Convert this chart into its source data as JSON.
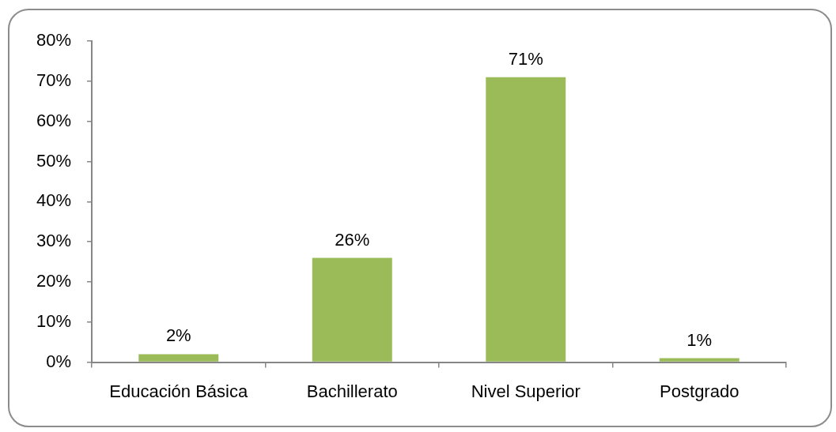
{
  "chart_data": {
    "type": "bar",
    "categories": [
      "Educación Básica",
      "Bachillerato",
      "Nivel Superior",
      "Postgrado"
    ],
    "values": [
      2,
      26,
      71,
      1
    ],
    "color": "#9bbb59",
    "value_labels": [
      "2%",
      "26%",
      "71%",
      "1%"
    ],
    "ylim": [
      0,
      80
    ],
    "yticks": [
      {
        "value": 0,
        "label": "0%"
      },
      {
        "value": 10,
        "label": "10%"
      },
      {
        "value": 20,
        "label": "20%"
      },
      {
        "value": 30,
        "label": "30%"
      },
      {
        "value": 40,
        "label": "40%"
      },
      {
        "value": 50,
        "label": "50%"
      },
      {
        "value": 60,
        "label": "60%"
      },
      {
        "value": 70,
        "label": "70%"
      },
      {
        "value": 80,
        "label": "80%"
      }
    ]
  }
}
